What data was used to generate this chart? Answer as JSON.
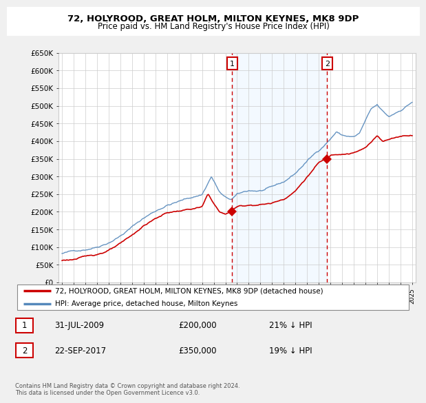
{
  "title": "72, HOLYROOD, GREAT HOLM, MILTON KEYNES, MK8 9DP",
  "subtitle": "Price paid vs. HM Land Registry's House Price Index (HPI)",
  "ylabel_ticks": [
    "£0",
    "£50K",
    "£100K",
    "£150K",
    "£200K",
    "£250K",
    "£300K",
    "£350K",
    "£400K",
    "£450K",
    "£500K",
    "£550K",
    "£600K",
    "£650K"
  ],
  "ytick_values": [
    0,
    50000,
    100000,
    150000,
    200000,
    250000,
    300000,
    350000,
    400000,
    450000,
    500000,
    550000,
    600000,
    650000
  ],
  "ylim": [
    0,
    650000
  ],
  "sale1_date": 2009.58,
  "sale1_price": 200000,
  "sale2_date": 2017.72,
  "sale2_price": 350000,
  "vline_color": "#cc0000",
  "hpi_color": "#5588bb",
  "sale_color": "#cc0000",
  "shade_color": "#ddeeff",
  "legend_label_sale": "72, HOLYROOD, GREAT HOLM, MILTON KEYNES, MK8 9DP (detached house)",
  "legend_label_hpi": "HPI: Average price, detached house, Milton Keynes",
  "annotation1_date": "31-JUL-2009",
  "annotation1_price": "£200,000",
  "annotation1_pct": "21% ↓ HPI",
  "annotation2_date": "22-SEP-2017",
  "annotation2_price": "£350,000",
  "annotation2_pct": "19% ↓ HPI",
  "footer": "Contains HM Land Registry data © Crown copyright and database right 2024.\nThis data is licensed under the Open Government Licence v3.0.",
  "plot_bg_color": "#ffffff",
  "grid_color": "#cccccc",
  "fig_bg_color": "#f0f0f0"
}
